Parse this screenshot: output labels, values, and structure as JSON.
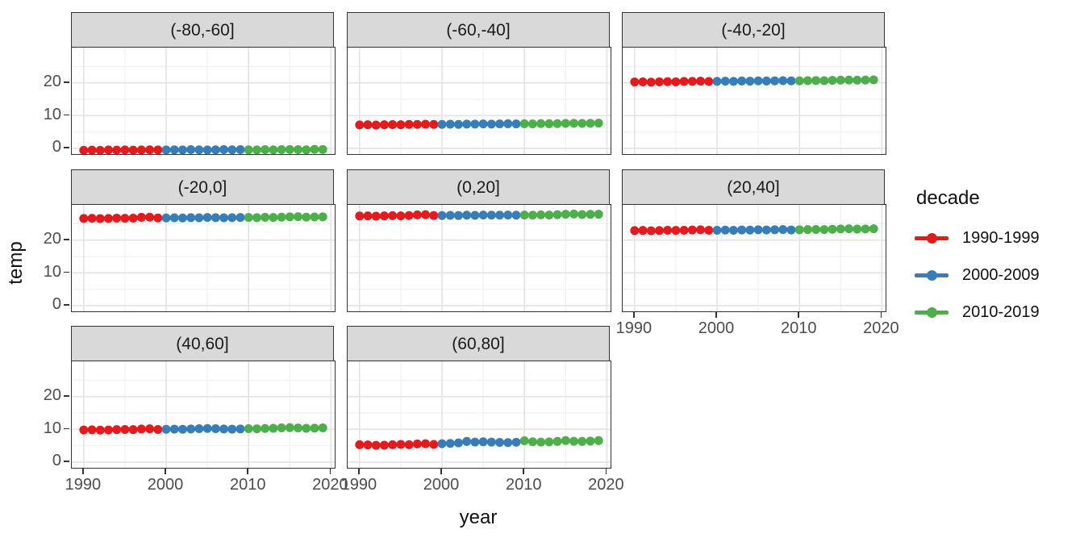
{
  "figure": {
    "x_axis_title": "year",
    "y_axis_title": "temp"
  },
  "legend": {
    "title": "decade",
    "entries": [
      {
        "label": "1990-1999",
        "color": "#E41A1C"
      },
      {
        "label": "2000-2009",
        "color": "#377EB8"
      },
      {
        "label": "2010-2019",
        "color": "#4DAF4A"
      }
    ]
  },
  "chart_data": {
    "type": "scatter",
    "title": "",
    "xlabel": "year",
    "ylabel": "temp",
    "legend_title": "decade",
    "legend_position": "right",
    "grid": "on",
    "facet_labels": [
      "(-80,-60]",
      "(-60,-40]",
      "(-40,-20]",
      "(-20,0]",
      "(0,20]",
      "(20,40]",
      "(40,60]",
      "(60,80]"
    ],
    "x_domain": [
      1988.55,
      2020.45
    ],
    "y_domain": [
      -1.75,
      30.75
    ],
    "x_breaks": [
      1990,
      2000,
      2010,
      2020
    ],
    "y_breaks": [
      0,
      10,
      20
    ],
    "x_minor_breaks": [
      1995,
      2005,
      2015
    ],
    "y_minor_breaks": [
      5,
      15,
      25
    ],
    "decades": [
      {
        "name": "1990-1999",
        "start": 1990,
        "end": 1999,
        "color": "#E41A1C"
      },
      {
        "name": "2000-2009",
        "start": 2000,
        "end": 2009,
        "color": "#377EB8"
      },
      {
        "name": "2010-2019",
        "start": 2010,
        "end": 2019,
        "color": "#4DAF4A"
      }
    ],
    "years": [
      1990,
      1991,
      1992,
      1993,
      1994,
      1995,
      1996,
      1997,
      1998,
      1999,
      2000,
      2001,
      2002,
      2003,
      2004,
      2005,
      2006,
      2007,
      2008,
      2009,
      2010,
      2011,
      2012,
      2013,
      2014,
      2015,
      2016,
      2017,
      2018,
      2019
    ],
    "facets": [
      {
        "label": "(-80,-60]",
        "values": [
          -0.6,
          -0.55,
          -0.6,
          -0.5,
          -0.55,
          -0.5,
          -0.55,
          -0.5,
          -0.45,
          -0.5,
          -0.5,
          -0.45,
          -0.5,
          -0.4,
          -0.45,
          -0.5,
          -0.45,
          -0.4,
          -0.45,
          -0.4,
          -0.45,
          -0.5,
          -0.4,
          -0.45,
          -0.4,
          -0.35,
          -0.4,
          -0.45,
          -0.3,
          -0.35
        ]
      },
      {
        "label": "(-60,-40]",
        "values": [
          7.15,
          7.2,
          7.1,
          7.2,
          7.25,
          7.2,
          7.3,
          7.3,
          7.35,
          7.3,
          7.3,
          7.35,
          7.3,
          7.4,
          7.4,
          7.45,
          7.4,
          7.45,
          7.5,
          7.45,
          7.5,
          7.45,
          7.55,
          7.5,
          7.55,
          7.6,
          7.65,
          7.6,
          7.65,
          7.7
        ]
      },
      {
        "label": "(-40,-20]",
        "values": [
          20.25,
          20.3,
          20.2,
          20.3,
          20.35,
          20.3,
          20.4,
          20.45,
          20.5,
          20.4,
          20.45,
          20.5,
          20.45,
          20.55,
          20.5,
          20.6,
          20.55,
          20.6,
          20.65,
          20.6,
          20.6,
          20.65,
          20.7,
          20.65,
          20.75,
          20.8,
          20.85,
          20.8,
          20.85,
          20.9
        ]
      },
      {
        "label": "(-20,0]",
        "values": [
          26.6,
          26.65,
          26.55,
          26.6,
          26.7,
          26.65,
          26.7,
          26.95,
          27.0,
          26.75,
          26.75,
          26.8,
          26.75,
          26.85,
          26.8,
          26.9,
          26.85,
          26.8,
          26.85,
          26.9,
          26.9,
          26.85,
          26.95,
          26.9,
          27.0,
          27.1,
          27.15,
          27.0,
          27.05,
          27.1
        ]
      },
      {
        "label": "(0,20]",
        "values": [
          27.35,
          27.4,
          27.3,
          27.4,
          27.45,
          27.4,
          27.5,
          27.7,
          27.75,
          27.5,
          27.5,
          27.55,
          27.5,
          27.6,
          27.55,
          27.65,
          27.6,
          27.6,
          27.65,
          27.6,
          27.65,
          27.6,
          27.7,
          27.65,
          27.75,
          27.9,
          27.95,
          27.8,
          27.85,
          27.9
        ]
      },
      {
        "label": "(20,40]",
        "values": [
          22.9,
          22.95,
          22.85,
          22.9,
          23.0,
          22.95,
          23.0,
          23.1,
          23.15,
          23.0,
          23.0,
          23.05,
          23.0,
          23.1,
          23.05,
          23.15,
          23.1,
          23.15,
          23.2,
          23.1,
          23.15,
          23.2,
          23.25,
          23.2,
          23.3,
          23.4,
          23.45,
          23.35,
          23.4,
          23.45
        ]
      },
      {
        "label": "(40,60]",
        "values": [
          9.8,
          9.85,
          9.75,
          9.8,
          9.9,
          9.95,
          9.9,
          10.1,
          10.15,
          9.95,
          10.0,
          10.05,
          10.0,
          10.1,
          10.2,
          10.25,
          10.2,
          10.1,
          10.05,
          10.1,
          10.2,
          10.15,
          10.25,
          10.3,
          10.45,
          10.5,
          10.4,
          10.3,
          10.35,
          10.45
        ]
      },
      {
        "label": "(60,80]",
        "values": [
          5.3,
          5.25,
          5.1,
          5.15,
          5.3,
          5.4,
          5.3,
          5.55,
          5.6,
          5.4,
          5.6,
          5.7,
          5.85,
          6.3,
          6.1,
          6.2,
          6.1,
          6.0,
          5.95,
          6.05,
          6.5,
          6.2,
          6.1,
          6.15,
          6.3,
          6.55,
          6.35,
          6.3,
          6.4,
          6.55
        ]
      }
    ],
    "style": {
      "point_radius": 5.5,
      "strip_fill": "#d9d9d9",
      "panel_border": "#333333",
      "major_grid": "#e3e3e3",
      "minor_grid": "#f0f0f0",
      "tick_label_color": "#4d4d4d"
    }
  }
}
